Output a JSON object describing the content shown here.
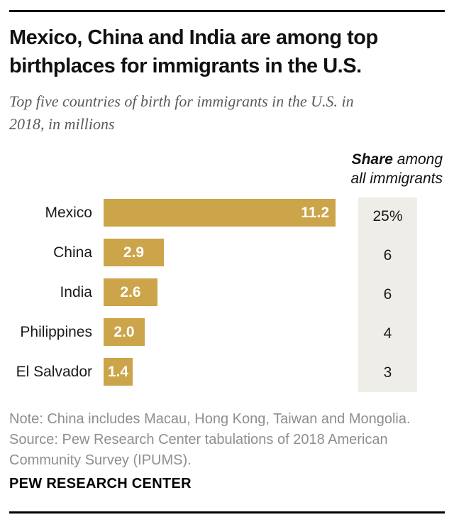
{
  "header": {
    "title": "Mexico, China and India are among top birthplaces for immigrants in the U.S.",
    "title_lines": [
      "Mexico, China and India are among top",
      "birthplaces for immigrants in the U.S."
    ],
    "subtitle": "Top five countries of birth for immigrants in the U.S. in 2018, in millions",
    "subtitle_lines": [
      "Top five countries of birth for immigrants in the U.S. in",
      "2018, in millions"
    ]
  },
  "share_header": {
    "bold": "Share",
    "rest": " among",
    "line2": "all immigrants"
  },
  "chart_data": {
    "type": "bar",
    "orientation": "horizontal",
    "title": "Mexico, China and India are among top birthplaces for immigrants in the U.S.",
    "subtitle": "Top five countries of birth for immigrants in the U.S. in 2018, in millions",
    "unit": "millions",
    "categories": [
      "Mexico",
      "China",
      "India",
      "Philippines",
      "El Salvador"
    ],
    "values": [
      11.2,
      2.9,
      2.6,
      2.0,
      1.4
    ],
    "value_labels": [
      "11.2",
      "2.9",
      "2.6",
      "2.0",
      "1.4"
    ],
    "share_column_header": "Share among all immigrants",
    "share_among_all_immigrants": [
      "25%",
      "6",
      "6",
      "4",
      "3"
    ],
    "xlim": [
      0,
      11.2
    ],
    "grid": false,
    "legend": false,
    "bar_color": "#cca449",
    "bar_value_color": "#ffffff",
    "share_column_bg": "#eeede8"
  },
  "note": "Note: China includes Macau, Hong Kong, Taiwan and Mongolia.",
  "note_lines": [
    "Note: China includes Macau, Hong Kong, Taiwan and Mongolia."
  ],
  "source": "Source: Pew Research Center tabulations of 2018 American Community Survey (IPUMS).",
  "source_lines": [
    "Source: Pew Research Center tabulations of 2018 American",
    "Community Survey (IPUMS)."
  ],
  "footer": "PEW RESEARCH CENTER"
}
